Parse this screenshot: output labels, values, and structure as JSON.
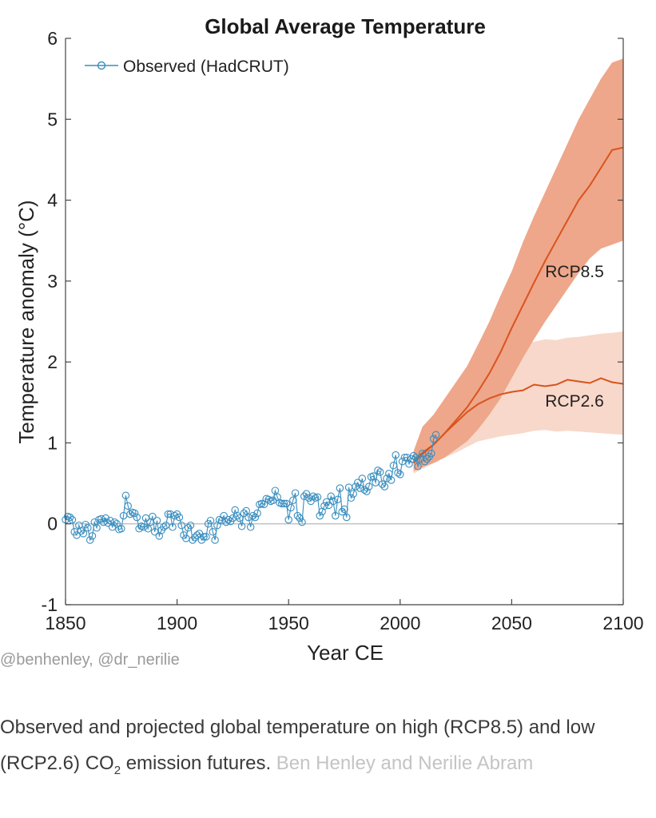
{
  "chart_data": {
    "type": "line",
    "title": "Global Average Temperature",
    "xlabel": "Year CE",
    "ylabel": "Temperature anomaly (°C)",
    "xlim": [
      1850,
      2100
    ],
    "ylim": [
      -1,
      6
    ],
    "xticks": [
      "1850",
      "1900",
      "1950",
      "2000",
      "2050",
      "2100"
    ],
    "yticks": [
      "-1",
      "0",
      "1",
      "2",
      "3",
      "4",
      "5",
      "6"
    ],
    "grid": false,
    "legend": {
      "position": "top-left"
    },
    "colors": {
      "observed": "#3a8ebf",
      "projection_line": "#d9531e",
      "band_high": "#eea78a",
      "band_low": "#f8d8ca",
      "zero_line": "#b8b8b8",
      "axis": "#444444"
    },
    "series": [
      {
        "name": "Observed (HadCRUT)",
        "style": "line-with-circle-markers",
        "x": [
          1850,
          1851,
          1852,
          1853,
          1854,
          1855,
          1856,
          1857,
          1858,
          1859,
          1860,
          1861,
          1862,
          1863,
          1864,
          1865,
          1866,
          1867,
          1868,
          1869,
          1870,
          1871,
          1872,
          1873,
          1874,
          1875,
          1876,
          1877,
          1878,
          1879,
          1880,
          1881,
          1882,
          1883,
          1884,
          1885,
          1886,
          1887,
          1888,
          1889,
          1890,
          1891,
          1892,
          1893,
          1894,
          1895,
          1896,
          1897,
          1898,
          1899,
          1900,
          1901,
          1902,
          1903,
          1904,
          1905,
          1906,
          1907,
          1908,
          1909,
          1910,
          1911,
          1912,
          1913,
          1914,
          1915,
          1916,
          1917,
          1918,
          1919,
          1920,
          1921,
          1922,
          1923,
          1924,
          1925,
          1926,
          1927,
          1928,
          1929,
          1930,
          1931,
          1932,
          1933,
          1934,
          1935,
          1936,
          1937,
          1938,
          1939,
          1940,
          1941,
          1942,
          1943,
          1944,
          1945,
          1946,
          1947,
          1948,
          1949,
          1950,
          1951,
          1952,
          1953,
          1954,
          1955,
          1956,
          1957,
          1958,
          1959,
          1960,
          1961,
          1962,
          1963,
          1964,
          1965,
          1966,
          1967,
          1968,
          1969,
          1970,
          1971,
          1972,
          1973,
          1974,
          1975,
          1976,
          1977,
          1978,
          1979,
          1980,
          1981,
          1982,
          1983,
          1984,
          1985,
          1986,
          1987,
          1988,
          1989,
          1990,
          1991,
          1992,
          1993,
          1994,
          1995,
          1996,
          1997,
          1998,
          1999,
          2000,
          2001,
          2002,
          2003,
          2004,
          2005,
          2006,
          2007,
          2008,
          2009,
          2010,
          2011,
          2012,
          2013,
          2014,
          2015,
          2016
        ],
        "y": [
          0.05,
          0.09,
          0.08,
          0.05,
          -0.1,
          -0.14,
          -0.02,
          -0.09,
          -0.12,
          -0.01,
          -0.05,
          -0.2,
          -0.15,
          0.02,
          -0.05,
          0.05,
          0.06,
          0.02,
          0.07,
          0.01,
          0.04,
          -0.04,
          0.02,
          0.0,
          -0.07,
          -0.06,
          0.1,
          0.35,
          0.22,
          0.12,
          0.14,
          0.13,
          0.08,
          -0.06,
          -0.03,
          -0.04,
          0.07,
          -0.06,
          0.02,
          0.09,
          -0.1,
          0.04,
          -0.15,
          -0.08,
          -0.04,
          -0.02,
          0.12,
          0.12,
          -0.04,
          0.1,
          0.12,
          0.08,
          -0.02,
          -0.14,
          -0.18,
          -0.05,
          -0.02,
          -0.2,
          -0.17,
          -0.14,
          -0.12,
          -0.2,
          -0.16,
          -0.16,
          0.0,
          0.04,
          -0.1,
          -0.2,
          -0.02,
          0.05,
          0.04,
          0.1,
          0.02,
          0.05,
          0.03,
          0.07,
          0.17,
          0.1,
          0.07,
          -0.03,
          0.13,
          0.16,
          0.08,
          -0.04,
          0.1,
          0.08,
          0.13,
          0.24,
          0.25,
          0.24,
          0.31,
          0.3,
          0.28,
          0.29,
          0.41,
          0.33,
          0.26,
          0.25,
          0.25,
          0.25,
          0.05,
          0.2,
          0.29,
          0.38,
          0.1,
          0.07,
          0.02,
          0.34,
          0.37,
          0.32,
          0.28,
          0.34,
          0.32,
          0.33,
          0.1,
          0.15,
          0.22,
          0.27,
          0.23,
          0.34,
          0.28,
          0.1,
          0.3,
          0.44,
          0.15,
          0.18,
          0.08,
          0.45,
          0.32,
          0.37,
          0.46,
          0.51,
          0.44,
          0.56,
          0.42,
          0.4,
          0.46,
          0.58,
          0.59,
          0.51,
          0.66,
          0.64,
          0.49,
          0.46,
          0.56,
          0.62,
          0.54,
          0.72,
          0.85,
          0.63,
          0.61,
          0.77,
          0.82,
          0.82,
          0.74,
          0.8,
          0.84,
          0.82,
          0.71,
          0.8,
          0.87,
          0.77,
          0.8,
          0.83,
          0.87,
          1.05,
          1.1
        ]
      },
      {
        "name": "RCP8.5",
        "style": "line-with-band",
        "x": [
          2006,
          2010,
          2015,
          2020,
          2025,
          2030,
          2035,
          2040,
          2045,
          2050,
          2055,
          2060,
          2065,
          2070,
          2075,
          2080,
          2085,
          2090,
          2095,
          2100
        ],
        "y": [
          0.78,
          0.88,
          0.98,
          1.12,
          1.28,
          1.44,
          1.64,
          1.86,
          2.12,
          2.42,
          2.7,
          2.98,
          3.25,
          3.5,
          3.75,
          4.0,
          4.18,
          4.4,
          4.62,
          4.65
        ],
        "lower": [
          0.65,
          0.7,
          0.75,
          0.82,
          0.92,
          1.02,
          1.17,
          1.35,
          1.55,
          1.8,
          2.05,
          2.28,
          2.5,
          2.7,
          2.9,
          3.1,
          3.28,
          3.4,
          3.45,
          3.5
        ],
        "upper": [
          0.9,
          1.2,
          1.35,
          1.55,
          1.75,
          1.95,
          2.22,
          2.5,
          2.82,
          3.12,
          3.48,
          3.8,
          4.1,
          4.4,
          4.7,
          5.0,
          5.25,
          5.5,
          5.7,
          5.75
        ]
      },
      {
        "name": "RCP2.6",
        "style": "line-with-band",
        "x": [
          2006,
          2010,
          2015,
          2020,
          2025,
          2030,
          2035,
          2040,
          2045,
          2050,
          2055,
          2060,
          2065,
          2070,
          2075,
          2080,
          2085,
          2090,
          2095,
          2100
        ],
        "y": [
          0.75,
          0.86,
          0.98,
          1.12,
          1.25,
          1.38,
          1.48,
          1.55,
          1.6,
          1.63,
          1.65,
          1.72,
          1.7,
          1.72,
          1.78,
          1.76,
          1.74,
          1.8,
          1.75,
          1.73
        ],
        "lower": [
          0.62,
          0.68,
          0.75,
          0.82,
          0.88,
          0.95,
          1.02,
          1.05,
          1.08,
          1.1,
          1.12,
          1.15,
          1.16,
          1.14,
          1.15,
          1.14,
          1.13,
          1.12,
          1.11,
          1.1
        ],
        "upper": [
          0.88,
          1.2,
          1.35,
          1.55,
          1.72,
          1.85,
          1.98,
          2.08,
          2.15,
          2.18,
          2.2,
          2.25,
          2.28,
          2.27,
          2.3,
          2.31,
          2.33,
          2.35,
          2.36,
          2.38
        ]
      }
    ],
    "annotations": [
      {
        "text": "RCP8.5",
        "x": 2065,
        "y": 3.05
      },
      {
        "text": "RCP2.6",
        "x": 2065,
        "y": 1.45
      }
    ]
  },
  "credit": "@benhenley, @dr_nerilie",
  "caption": {
    "part1": "Observed and projected global temperature on high (RCP8.5) and low (RCP2.6) CO",
    "subscript": "2",
    "part2": " emission futures.",
    "source": "Ben Henley and Nerilie Abram"
  }
}
